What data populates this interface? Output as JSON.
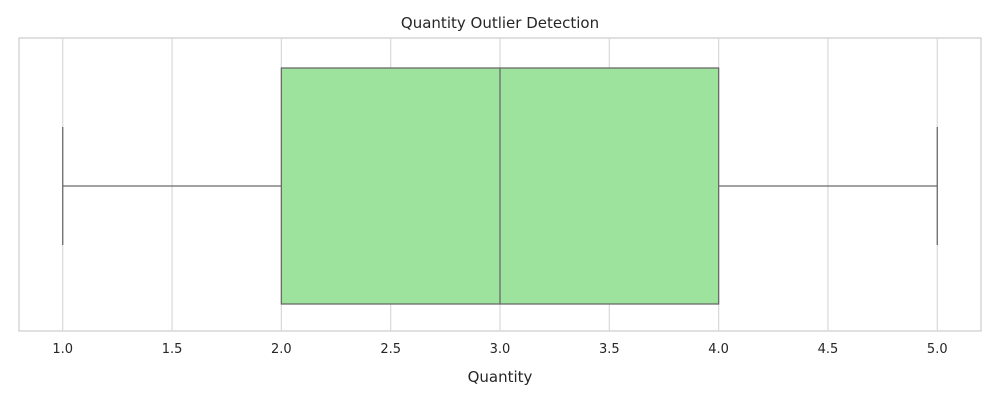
{
  "chart_data": {
    "type": "box",
    "orientation": "horizontal",
    "title": "Quantity Outlier Detection",
    "xlabel": "Quantity",
    "ylabel": "",
    "xlim": [
      0.8,
      5.2
    ],
    "xticks": [
      1.0,
      1.5,
      2.0,
      2.5,
      3.0,
      3.5,
      4.0,
      4.5,
      5.0
    ],
    "xtick_labels": [
      "1.0",
      "1.5",
      "2.0",
      "2.5",
      "3.0",
      "3.5",
      "4.0",
      "4.5",
      "5.0"
    ],
    "grid": true,
    "box": {
      "min": 1.0,
      "q1": 2.0,
      "median": 3.0,
      "q3": 4.0,
      "max": 5.0,
      "outliers": []
    },
    "colors": {
      "box_fill": "#9de29d",
      "box_edge": "#6b6b6b",
      "grid": "#d9d9d9",
      "spine": "#cccccc"
    }
  }
}
